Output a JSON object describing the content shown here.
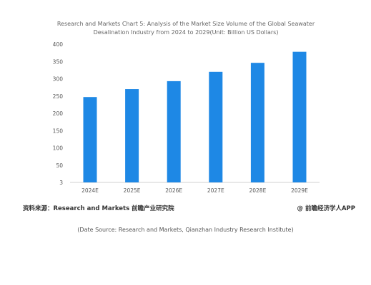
{
  "chart_data": {
    "type": "bar",
    "title": "Research and Markets Chart 5: Analysis of the Market Size Volume of the Global Seawater Desalination Industry from 2024 to 2029(Unit: Billion US Dollars)",
    "categories": [
      "2024E",
      "2025E",
      "2026E",
      "2027E",
      "2028E",
      "2029E"
    ],
    "values": [
      247,
      270,
      293,
      320,
      346,
      378
    ],
    "y_ticks": [
      "400",
      "350",
      "300",
      "250",
      "200",
      "150",
      "100",
      "50",
      "3"
    ],
    "ylim": [
      0,
      400
    ],
    "grid": false,
    "bar_color": "#1e88e5"
  },
  "source_line": "资料来源：Research and Markets 前瞻产业研究院",
  "watermark": "@ 前瞻经济学人APP",
  "caption": "(Date Source: Research and Markets, Qianzhan Industry Research Institute)"
}
